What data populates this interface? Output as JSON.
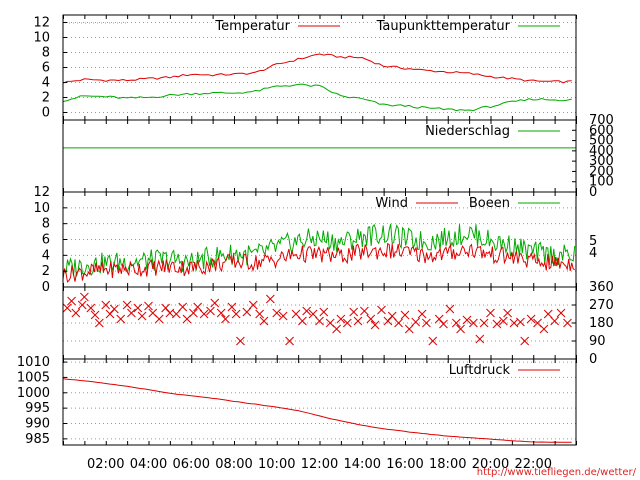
{
  "credit": "http://www.tiefliegen.de/wetter/",
  "colors": {
    "red": "#dd0000",
    "green": "#00aa00",
    "grid": "#999999"
  },
  "x_ticks": [
    "02:00",
    "04:00",
    "06:00",
    "08:00",
    "10:00",
    "12:00",
    "14:00",
    "16:00",
    "18:00",
    "20:00",
    "22:00"
  ],
  "chart_data": [
    {
      "type": "line",
      "ylim": [
        -1,
        13
      ],
      "yticks_left": [
        "0",
        "2",
        "4",
        "6",
        "8",
        "10",
        "12"
      ],
      "grid": true,
      "legend_placement": "top",
      "x_hours": [
        0,
        1,
        2,
        3,
        4,
        5,
        6,
        7,
        8,
        9,
        10,
        11,
        12,
        13,
        14,
        15,
        16,
        17,
        18,
        19,
        20,
        21,
        22,
        23
      ],
      "series": [
        {
          "name": "Temperatur",
          "color": "#dd0000",
          "values": [
            4.0,
            4.4,
            4.3,
            4.3,
            4.5,
            4.7,
            5.1,
            5.0,
            5.1,
            5.3,
            6.4,
            7.1,
            7.8,
            7.4,
            7.3,
            6.2,
            5.9,
            5.6,
            5.4,
            5.2,
            4.8,
            4.5,
            4.2,
            4.1
          ]
        },
        {
          "name": "Taupunkttemperatur",
          "color": "#00aa00",
          "values": [
            1.6,
            2.2,
            2.1,
            1.9,
            2.0,
            2.3,
            2.5,
            2.6,
            2.6,
            2.8,
            3.5,
            3.7,
            3.5,
            2.2,
            1.8,
            1.0,
            0.9,
            0.6,
            0.4,
            0.3,
            0.8,
            1.4,
            1.8,
            1.7
          ]
        }
      ]
    },
    {
      "type": "line",
      "ylim": [
        0,
        700
      ],
      "yticks_right": [
        "700",
        "600",
        "500",
        "400",
        "300",
        "200",
        "100",
        "0"
      ],
      "grid": false,
      "legend_placement": "top-right",
      "x_hours": [
        0,
        23
      ],
      "series": [
        {
          "name": "Niederschlag",
          "color": "#00aa00",
          "values": [
            429,
            429
          ]
        }
      ]
    },
    {
      "type": "line",
      "ylim": [
        0,
        12
      ],
      "yticks_left": [
        "0",
        "2",
        "4",
        "6",
        "8",
        "10",
        "12"
      ],
      "yticks_right": [
        "5",
        "4"
      ],
      "grid": true,
      "legend_placement": "top",
      "x_hours": [
        0,
        1,
        2,
        3,
        4,
        5,
        6,
        7,
        8,
        9,
        10,
        11,
        12,
        13,
        14,
        15,
        16,
        17,
        18,
        19,
        20,
        21,
        22,
        23
      ],
      "series": [
        {
          "name": "Wind",
          "color": "#dd0000",
          "values": [
            1.6,
            1.9,
            2.2,
            2.3,
            2.4,
            2.6,
            2.4,
            2.8,
            3.2,
            3.1,
            3.5,
            4.2,
            4.1,
            3.9,
            4.4,
            4.6,
            4.4,
            4.0,
            4.2,
            4.8,
            4.1,
            3.8,
            3.2,
            3.0
          ]
        },
        {
          "name": "Boeen",
          "color": "#00aa00",
          "values": [
            2.2,
            2.8,
            3.0,
            3.2,
            3.3,
            3.5,
            3.1,
            3.8,
            4.2,
            4.0,
            5.0,
            5.8,
            6.2,
            5.6,
            6.4,
            6.8,
            6.1,
            5.7,
            6.2,
            6.9,
            5.8,
            5.2,
            4.4,
            4.0
          ]
        }
      ]
    },
    {
      "type": "scatter",
      "ylim": [
        0,
        360
      ],
      "yticks_right": [
        "360",
        "270",
        "180",
        "90",
        "0"
      ],
      "grid": true,
      "marker": "x",
      "color": "#dd0000",
      "points": [
        [
          0.2,
          255
        ],
        [
          0.4,
          290
        ],
        [
          0.6,
          230
        ],
        [
          0.9,
          270
        ],
        [
          1.0,
          310
        ],
        [
          1.3,
          255
        ],
        [
          1.5,
          220
        ],
        [
          1.7,
          180
        ],
        [
          2.0,
          270
        ],
        [
          2.2,
          225
        ],
        [
          2.4,
          250
        ],
        [
          2.7,
          200
        ],
        [
          3.0,
          270
        ],
        [
          3.2,
          230
        ],
        [
          3.5,
          255
        ],
        [
          3.7,
          215
        ],
        [
          4.0,
          265
        ],
        [
          4.2,
          230
        ],
        [
          4.5,
          200
        ],
        [
          4.8,
          255
        ],
        [
          5.0,
          230
        ],
        [
          5.3,
          225
        ],
        [
          5.6,
          260
        ],
        [
          5.8,
          200
        ],
        [
          6.1,
          230
        ],
        [
          6.3,
          260
        ],
        [
          6.6,
          225
        ],
        [
          6.9,
          240
        ],
        [
          7.1,
          280
        ],
        [
          7.4,
          230
        ],
        [
          7.6,
          200
        ],
        [
          7.9,
          260
        ],
        [
          8.1,
          225
        ],
        [
          8.3,
          90
        ],
        [
          8.6,
          235
        ],
        [
          8.9,
          270
        ],
        [
          9.2,
          225
        ],
        [
          9.4,
          190
        ],
        [
          9.7,
          300
        ],
        [
          10.0,
          230
        ],
        [
          10.3,
          215
        ],
        [
          10.6,
          90
        ],
        [
          10.9,
          225
        ],
        [
          11.2,
          190
        ],
        [
          11.4,
          240
        ],
        [
          11.7,
          225
        ],
        [
          12.0,
          190
        ],
        [
          12.2,
          235
        ],
        [
          12.5,
          180
        ],
        [
          12.8,
          150
        ],
        [
          13.0,
          200
        ],
        [
          13.3,
          180
        ],
        [
          13.6,
          235
        ],
        [
          13.8,
          190
        ],
        [
          14.1,
          240
        ],
        [
          14.4,
          200
        ],
        [
          14.6,
          170
        ],
        [
          14.9,
          245
        ],
        [
          15.2,
          190
        ],
        [
          15.4,
          215
        ],
        [
          15.7,
          180
        ],
        [
          16.0,
          220
        ],
        [
          16.2,
          150
        ],
        [
          16.5,
          185
        ],
        [
          16.8,
          225
        ],
        [
          17.0,
          180
        ],
        [
          17.3,
          90
        ],
        [
          17.6,
          200
        ],
        [
          17.8,
          175
        ],
        [
          18.1,
          250
        ],
        [
          18.4,
          180
        ],
        [
          18.6,
          150
        ],
        [
          18.9,
          195
        ],
        [
          19.2,
          180
        ],
        [
          19.5,
          100
        ],
        [
          19.7,
          180
        ],
        [
          20.0,
          230
        ],
        [
          20.3,
          175
        ],
        [
          20.6,
          190
        ],
        [
          20.8,
          230
        ],
        [
          21.1,
          180
        ],
        [
          21.4,
          185
        ],
        [
          21.6,
          90
        ],
        [
          21.9,
          200
        ],
        [
          22.2,
          180
        ],
        [
          22.5,
          150
        ],
        [
          22.7,
          225
        ],
        [
          23.0,
          190
        ],
        [
          23.3,
          230
        ],
        [
          23.6,
          180
        ]
      ]
    },
    {
      "type": "line",
      "ylim": [
        983,
        1011
      ],
      "yticks_left": [
        "985",
        "990",
        "995",
        "1000",
        "1005",
        "1010"
      ],
      "grid": true,
      "legend_placement": "top-right",
      "x_hours": [
        0,
        1,
        2,
        3,
        4,
        5,
        6,
        7,
        8,
        9,
        10,
        11,
        12,
        13,
        14,
        15,
        16,
        17,
        18,
        19,
        20,
        21,
        22,
        23
      ],
      "series": [
        {
          "name": "Luftdruck",
          "color": "#dd0000",
          "values": [
            1004.6,
            1003.9,
            1003.0,
            1002.1,
            1001.0,
            999.8,
            999.0,
            998.2,
            997.2,
            996.3,
            995.3,
            994.2,
            992.5,
            990.8,
            989.4,
            988.3,
            987.4,
            986.6,
            985.9,
            985.4,
            984.9,
            984.4,
            984.0,
            983.9
          ]
        }
      ]
    }
  ]
}
